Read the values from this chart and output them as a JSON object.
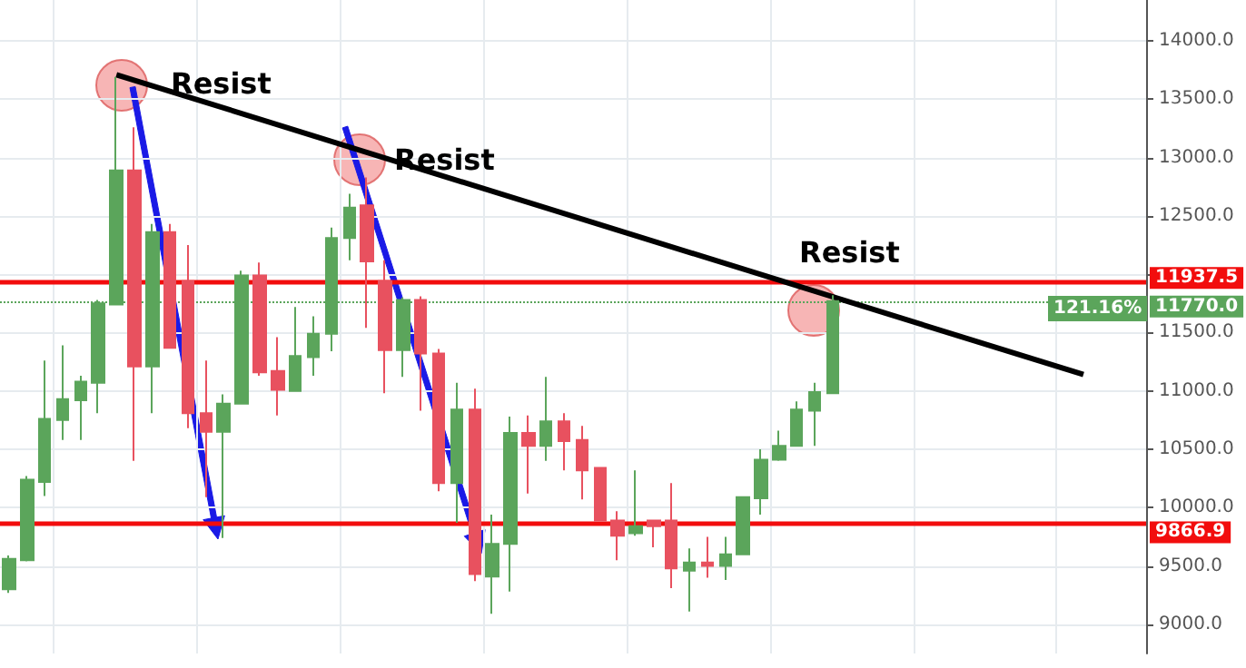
{
  "chart_data": {
    "type": "candlestick",
    "categories": [
      null,
      null,
      null,
      null,
      null,
      null,
      null,
      null,
      null,
      null,
      null,
      null,
      null,
      null,
      null,
      null,
      null,
      null,
      null,
      null,
      null,
      null,
      null,
      null,
      null,
      null,
      null,
      null,
      null,
      null,
      null,
      null,
      null,
      null,
      null,
      null,
      null,
      null,
      null,
      null,
      null,
      null,
      null,
      null,
      null,
      null,
      null,
      null,
      null,
      null,
      null,
      null,
      null,
      null,
      null,
      null,
      null,
      null,
      null,
      null,
      null,
      null,
      null,
      null
    ],
    "ohlc": [
      [
        9300,
        9590,
        9270,
        9560
      ],
      [
        9550,
        10270,
        9540,
        10240
      ],
      [
        10220,
        11260,
        10100,
        10760
      ],
      [
        10750,
        11390,
        10580,
        10930
      ],
      [
        10920,
        11130,
        10580,
        11080
      ],
      [
        11070,
        11780,
        10810,
        11750
      ],
      [
        11740,
        13690,
        11740,
        12890
      ],
      [
        12890,
        13260,
        10400,
        11210
      ],
      [
        11210,
        12430,
        10810,
        12360
      ],
      [
        12360,
        12430,
        11370,
        11370
      ],
      [
        11940,
        12250,
        10680,
        10810
      ],
      [
        10810,
        11260,
        10090,
        10650
      ],
      [
        10650,
        10970,
        9740,
        10890
      ],
      [
        10890,
        12030,
        10890,
        11990
      ],
      [
        11990,
        12100,
        11130,
        11160
      ],
      [
        11170,
        11460,
        10790,
        11010
      ],
      [
        11000,
        11720,
        11000,
        11300
      ],
      [
        11290,
        11640,
        11130,
        11490
      ],
      [
        11490,
        12400,
        11340,
        12310
      ],
      [
        12310,
        12690,
        12120,
        12570
      ],
      [
        12590,
        12830,
        11540,
        12110
      ],
      [
        11940,
        12120,
        10980,
        11350
      ],
      [
        11350,
        11800,
        11120,
        11780
      ],
      [
        11780,
        11810,
        10830,
        11320
      ],
      [
        11320,
        11360,
        10140,
        10210
      ],
      [
        10210,
        11070,
        9870,
        10840
      ],
      [
        10840,
        11020,
        9370,
        9430
      ],
      [
        9410,
        9940,
        9090,
        9690
      ],
      [
        9690,
        10780,
        9280,
        10640
      ],
      [
        10640,
        10790,
        10120,
        10530
      ],
      [
        10530,
        11120,
        10400,
        10740
      ],
      [
        10740,
        10810,
        10320,
        10570
      ],
      [
        10580,
        10700,
        10070,
        10320
      ],
      [
        10340,
        10340,
        9890,
        9890
      ],
      [
        9890,
        9970,
        9550,
        9760
      ],
      [
        9780,
        10320,
        9760,
        9840
      ],
      [
        9890,
        9890,
        9660,
        9840
      ],
      [
        9890,
        10210,
        9310,
        9480
      ],
      [
        9460,
        9650,
        9110,
        9530
      ],
      [
        9530,
        9750,
        9400,
        9500
      ],
      [
        9500,
        9750,
        9380,
        9600
      ],
      [
        9600,
        10090,
        9600,
        10090
      ],
      [
        10080,
        10500,
        9940,
        10410
      ],
      [
        10410,
        10660,
        10400,
        10530
      ],
      [
        10530,
        10910,
        10530,
        10840
      ],
      [
        10830,
        11070,
        10530,
        10990
      ],
      [
        10980,
        11820,
        10980,
        11770
      ],
      null,
      null,
      null,
      null,
      null,
      null,
      null,
      null,
      null,
      null,
      null,
      null,
      null,
      null,
      null,
      null,
      null
    ],
    "colors": [
      "#5ba55b",
      "#5ba55b",
      "#5ba55b",
      "#5ba55b",
      "#5ba55b",
      "#5ba55b",
      "#5ba55b",
      "#e8515f",
      "#5ba55b",
      "#e8515f",
      "#e8515f",
      "#e8515f",
      "#5ba55b",
      "#5ba55b",
      "#e8515f",
      "#e8515f",
      "#5ba55b",
      "#5ba55b",
      "#5ba55b",
      "#5ba55b",
      "#e8515f",
      "#e8515f",
      "#5ba55b",
      "#e8515f",
      "#e8515f",
      "#5ba55b",
      "#e8515f",
      "#5ba55b",
      "#5ba55b",
      "#e8515f",
      "#5ba55b",
      "#e8515f",
      "#e8515f",
      "#e8515f",
      "#e8515f",
      "#5ba55b",
      "#e8515f",
      "#e8515f",
      "#5ba55b",
      "#e8515f",
      "#5ba55b",
      "#5ba55b",
      "#5ba55b",
      "#5ba55b",
      "#5ba55b",
      "#5ba55b",
      "#5ba55b",
      null,
      null,
      null,
      null,
      null,
      null,
      null,
      null,
      null,
      null,
      null,
      null,
      null,
      null,
      null,
      null,
      null
    ],
    "series": [
      {
        "type": "line",
        "color": "#000000",
        "values": [
          null,
          null,
          null,
          null,
          null,
          null,
          13710,
          null,
          null,
          null,
          null,
          null,
          null,
          null,
          null,
          null,
          null,
          null,
          null,
          null,
          null,
          null,
          null,
          null,
          null,
          null,
          null,
          null,
          null,
          null,
          null,
          null,
          null,
          null,
          null,
          null,
          null,
          null,
          null,
          null,
          null,
          null,
          null,
          null,
          null,
          null,
          null,
          null,
          null,
          null,
          null,
          null,
          null,
          null,
          null,
          null,
          null,
          null,
          null,
          null,
          11140,
          null,
          null,
          null
        ]
      }
    ],
    "ylim": [
      8750,
      14350
    ],
    "yticks": [
      {
        "value": 9000,
        "label": "9000.0"
      },
      {
        "value": 9500,
        "label": "9500.0"
      },
      {
        "value": 10000,
        "label": "10000.0"
      },
      {
        "value": 10500,
        "label": "10500.0"
      },
      {
        "value": 11000,
        "label": "11000.0"
      },
      {
        "value": 11500,
        "label": "11500.0"
      },
      {
        "value": 12000,
        "label": null
      },
      {
        "value": 12500,
        "label": "12500.0"
      },
      {
        "value": 13000,
        "label": "13000.0"
      },
      {
        "value": 13500,
        "label": "13500.0"
      },
      {
        "value": 14000,
        "label": "14000.0"
      }
    ],
    "ref_lines": [
      {
        "axis": "y",
        "value": 11937.5,
        "label": "11937.5",
        "color": "#f20d0d",
        "line_style": "solid"
      },
      {
        "axis": "y",
        "value": 9866.9,
        "label": "9866.9",
        "color": "#f20d0d",
        "line_style": "solid"
      },
      {
        "axis": "y",
        "value": 11770,
        "label": "11770.0",
        "color": "#5ba55b",
        "line_style": "dotted"
      }
    ],
    "annotations": [
      "Resist",
      "Resist",
      "Resist",
      "121.16%"
    ],
    "grid": true
  }
}
